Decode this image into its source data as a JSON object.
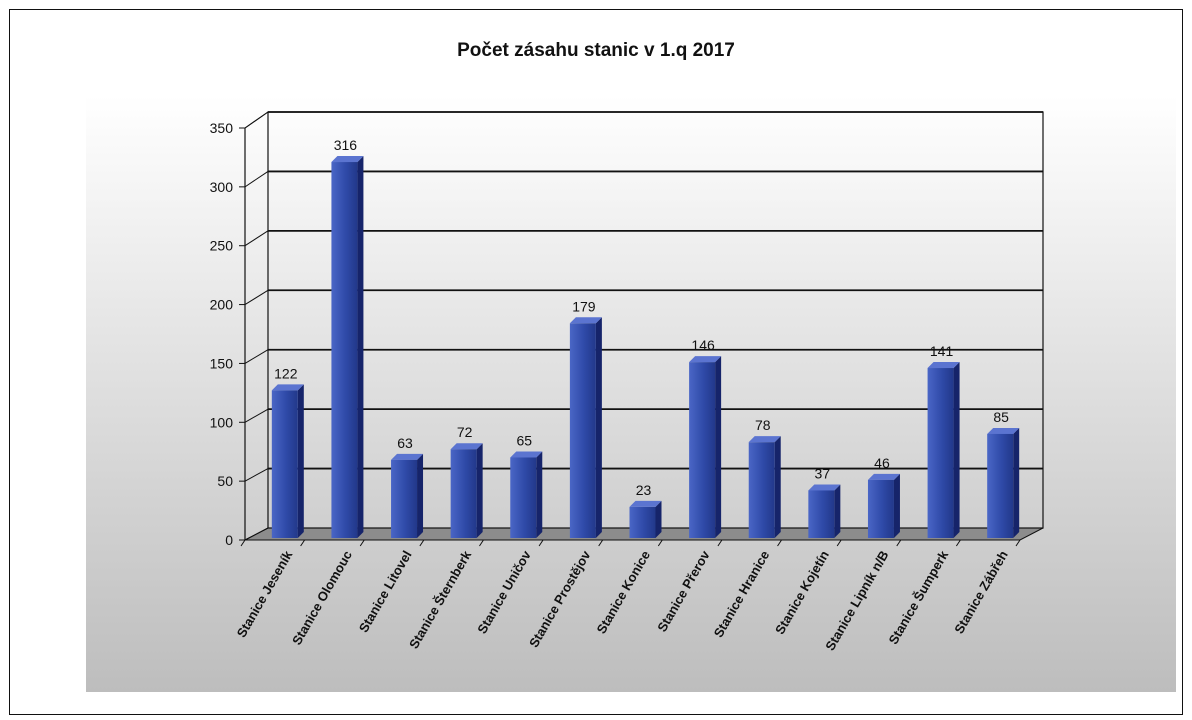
{
  "chart_data": {
    "type": "bar",
    "title": "Počet zásahu stanic v 1.q 2017",
    "categories": [
      "Stanice Jeseník",
      "Stanice Olomouc",
      "Stanice Litovel",
      "Stanice Šternberk",
      "Stanice Uničov",
      "Stanice Prostějov",
      "Stanice Konice",
      "Stanice Přerov",
      "Stanice Hranice",
      "Stanice Kojetín",
      "Stanice Lipník n/B",
      "Stanice Šumperk",
      "Stanice Zábřeh"
    ],
    "values": [
      122,
      316,
      63,
      72,
      65,
      179,
      23,
      146,
      78,
      37,
      46,
      141,
      85
    ],
    "ylim": [
      0,
      350
    ],
    "yticks": [
      0,
      50,
      100,
      150,
      200,
      250,
      300,
      350
    ],
    "xlabel": "",
    "ylabel": "",
    "grid": true,
    "legend": "none",
    "colors": {
      "bar_front": "#2f4aa8",
      "bar_side": "#16246a",
      "bar_top": "#5b74d0",
      "gridline": "#111111",
      "floor": "#8c8c8c",
      "background_gradient_bottom": "#bdbdbd"
    }
  }
}
